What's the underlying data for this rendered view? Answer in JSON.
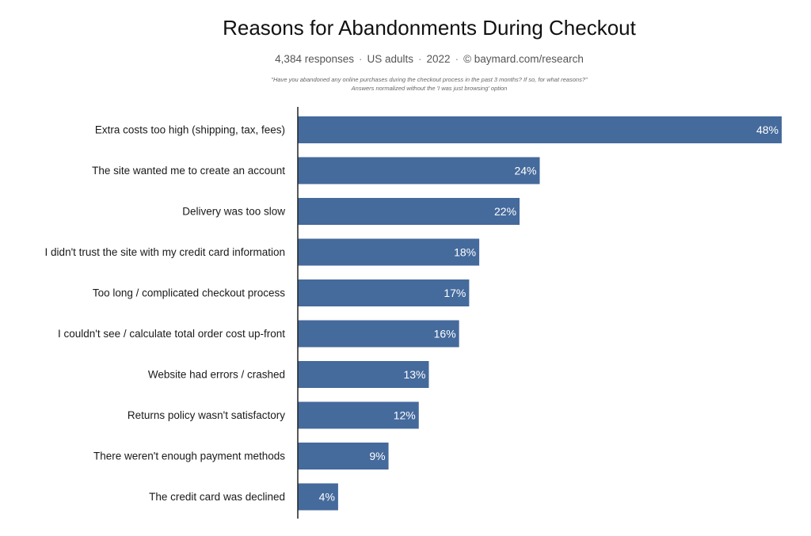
{
  "chart_data": {
    "type": "bar",
    "orientation": "horizontal",
    "title": "Reasons for Abandonments During Checkout",
    "subtitle": {
      "responses": "4,384 responses",
      "audience": "US adults",
      "year": "2022",
      "source": "© baymard.com/research"
    },
    "question": "\"Have you abandoned any online purchases during the checkout process in the past 3 months? If so, for what reasons?\"",
    "note": "Answers normalized without the 'I was just browsing' option",
    "categories": [
      "Extra costs too high (shipping, tax, fees)",
      "The site wanted me to create an account",
      "Delivery was too slow",
      "I didn't trust the site with my credit card information",
      "Too long / complicated checkout process",
      "I couldn't see / calculate total order cost up-front",
      "Website had errors / crashed",
      "Returns policy wasn't satisfactory",
      "There weren't enough payment methods",
      "The credit card was declined"
    ],
    "values": [
      48,
      24,
      22,
      18,
      17,
      16,
      13,
      12,
      9,
      4
    ],
    "value_labels": [
      "48%",
      "24%",
      "22%",
      "18%",
      "17%",
      "16%",
      "13%",
      "12%",
      "9%",
      "4%"
    ],
    "xlim": [
      0,
      48
    ],
    "grid": false,
    "legend": "none",
    "bar_color": "#456a9c"
  }
}
